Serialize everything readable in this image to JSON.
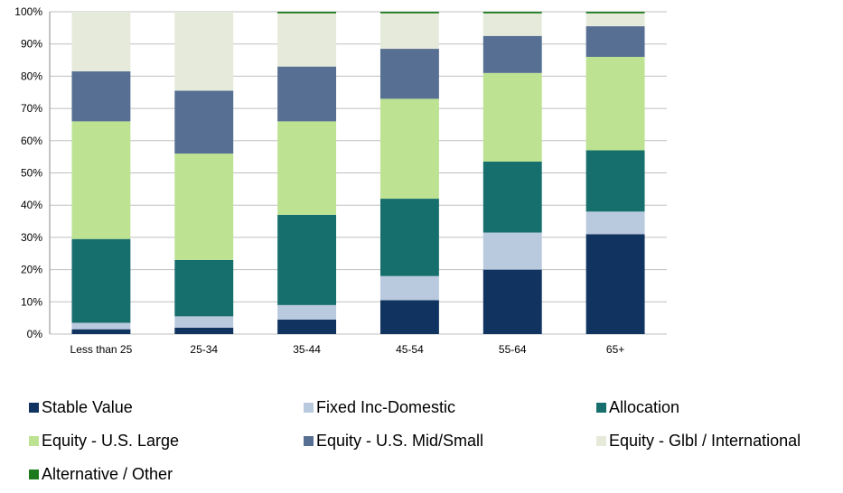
{
  "chart_data": {
    "type": "stacked_bar",
    "categories": [
      "Less than 25",
      "25-34",
      "35-44",
      "45-54",
      "55-64",
      "65+"
    ],
    "series": [
      {
        "name": "Stable Value",
        "color": "#10335f",
        "values": [
          1.5,
          2,
          4.5,
          10.5,
          20,
          31
        ]
      },
      {
        "name": "Fixed Inc-Domestic",
        "color": "#b9c9de",
        "values": [
          2,
          3.5,
          4.5,
          7.5,
          11.5,
          7
        ]
      },
      {
        "name": "Allocation",
        "color": "#176f6d",
        "values": [
          26,
          17.5,
          28,
          24,
          22,
          19
        ]
      },
      {
        "name": "Equity - U.S. Large",
        "color": "#bce292",
        "values": [
          36.5,
          33,
          29,
          31,
          27.5,
          29
        ]
      },
      {
        "name": "Equity - U.S. Mid/Small",
        "color": "#566f92",
        "values": [
          15.5,
          19.5,
          17,
          15.5,
          11.5,
          9.5
        ]
      },
      {
        "name": "Equity - Glbl / International",
        "color": "#e6eadb",
        "values": [
          18.5,
          24.5,
          16.5,
          11,
          7,
          4
        ]
      },
      {
        "name": "Alternative / Other",
        "color": "#1c7a1c",
        "values": [
          0,
          0,
          0.5,
          0.5,
          0.5,
          0.5
        ]
      }
    ],
    "ylim": [
      0,
      100
    ],
    "yticks": [
      {
        "value": 0,
        "label": "0%"
      },
      {
        "value": 10,
        "label": "10%"
      },
      {
        "value": 20,
        "label": "20%"
      },
      {
        "value": 30,
        "label": "30%"
      },
      {
        "value": 40,
        "label": "40%"
      },
      {
        "value": 50,
        "label": "50%"
      },
      {
        "value": 60,
        "label": "60%"
      },
      {
        "value": 70,
        "label": "70%"
      },
      {
        "value": 80,
        "label": "80%"
      },
      {
        "value": 90,
        "label": "90%"
      },
      {
        "value": 100,
        "label": "100%"
      }
    ],
    "grid": true
  }
}
